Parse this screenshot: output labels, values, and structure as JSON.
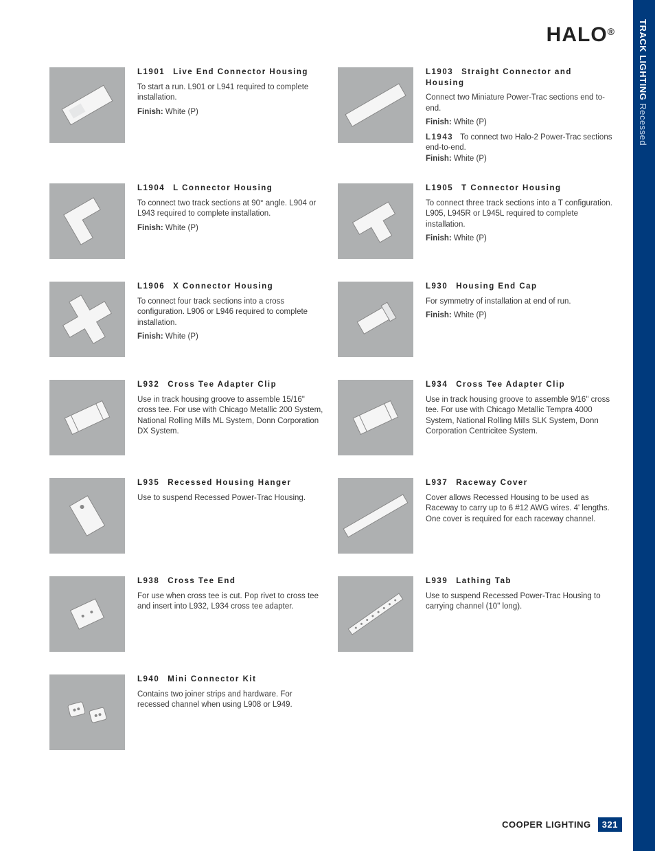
{
  "brand": "HALO",
  "brand_mark": "®",
  "sidebar": {
    "bold": "TRACK LIGHTING",
    "light": " Recessed"
  },
  "footer": {
    "company": "COOPER LIGHTING",
    "page": "321"
  },
  "colors": {
    "sidebar_bg": "#003a7d",
    "thumb_bg": "#aeb0b1",
    "text": "#3a3a3a",
    "page_bg": "#ffffff"
  },
  "finish_label": "Finish:",
  "finish_value": "White (P)",
  "items": {
    "L1901": {
      "code": "L1901",
      "title": "Live End Connector Housing",
      "desc": "To start a run.  L901 or L941 required to complete installation.",
      "has_finish": true
    },
    "L1903": {
      "code": "L1903",
      "title": "Straight Connector and Housing",
      "desc": "Connect two Miniature Power-Trac sections end to-end.",
      "has_finish": true,
      "extra_code": "L1943",
      "extra_desc": "To connect two Halo-2 Power-Trac sections end-to-end.",
      "extra_has_finish": true
    },
    "L1904": {
      "code": "L1904",
      "title": "L Connector Housing",
      "desc": "To connect two track sections at 90° angle. L904 or L943 required to complete installation.",
      "has_finish": true
    },
    "L1905": {
      "code": "L1905",
      "title": "T Connector Housing",
      "desc": "To connect three track sections into a  T configuration.  L905, L945R or L945L required to complete installation.",
      "has_finish": true
    },
    "L1906": {
      "code": "L1906",
      "title": "X Connector Housing",
      "desc": "To connect four track sections into a cross configuration.  L906 or L946 required to complete installation.",
      "has_finish": true
    },
    "L930": {
      "code": "L930",
      "title": "Housing End Cap",
      "desc": "For symmetry of installation at end of run.",
      "has_finish": true
    },
    "L932": {
      "code": "L932",
      "title": "Cross Tee Adapter Clip",
      "desc": "Use in track housing groove to assemble 15/16\" cross tee.  For use with Chicago Metallic 200 System, National Rolling Mills ML System, Donn Corporation DX System.",
      "has_finish": false
    },
    "L934": {
      "code": "L934",
      "title": "Cross Tee Adapter Clip",
      "desc": "Use in track housing groove to assemble 9/16\" cross tee. For use with Chicago Metallic Tempra 4000 System, National Rolling Mills SLK System, Donn Corporation Centricitee System.",
      "has_finish": false
    },
    "L935": {
      "code": "L935",
      "title": "Recessed Housing Hanger",
      "desc": "Use to suspend Recessed Power-Trac Housing.",
      "has_finish": false
    },
    "L937": {
      "code": "L937",
      "title": "Raceway Cover",
      "desc": "Cover allows Recessed Housing to be used as Raceway to carry up to 6 #12 AWG wires.  4' lengths.  One cover is required for each raceway channel.",
      "has_finish": false
    },
    "L938": {
      "code": "L938",
      "title": "Cross Tee End",
      "desc": "For use when cross tee is cut.  Pop rivet to cross tee and insert into L932, L934 cross tee adapter.",
      "has_finish": false
    },
    "L939": {
      "code": "L939",
      "title": "Lathing Tab",
      "desc": "Use to suspend Recessed Power-Trac Housing to carrying channel (10\" long).",
      "has_finish": false
    },
    "L940": {
      "code": "L940",
      "title": "Mini Connector Kit",
      "desc": "Contains two joiner strips and hardware.  For recessed channel when using L908 or L949.",
      "has_finish": false
    }
  },
  "layout": [
    [
      "L1901",
      "L1903"
    ],
    [
      "L1904",
      "L1905"
    ],
    [
      "L1906",
      "L930"
    ],
    [
      "L932",
      "L934"
    ],
    [
      "L935",
      "L937"
    ],
    [
      "L938",
      "L939"
    ],
    [
      "L940",
      null
    ]
  ],
  "thumb_shapes": {
    "L1901": "diag-rect",
    "L1903": "diag-long",
    "L1904": "l-shape",
    "L1905": "t-shape",
    "L1906": "x-shape",
    "L930": "end-cap",
    "L932": "clip",
    "L934": "clip",
    "L935": "hanger",
    "L937": "cover",
    "L938": "end",
    "L939": "tab",
    "L940": "kit"
  }
}
